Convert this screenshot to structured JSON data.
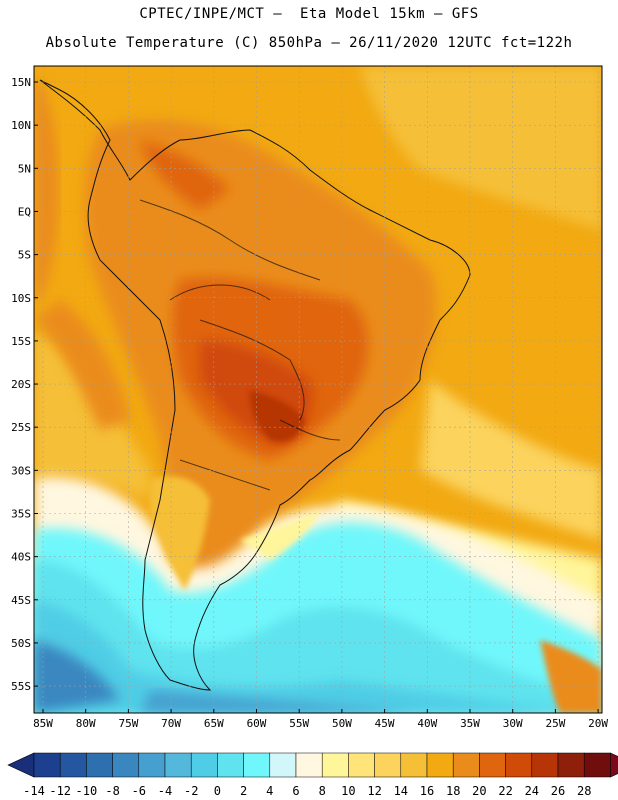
{
  "header": {
    "title_line1": "CPTEC/INPE/MCT –  Eta Model 15km – GFS",
    "title_line2": "Absolute Temperature (C) 850hPa – 26/11/2020 12UTC fct=122h"
  },
  "map": {
    "lat_labels": [
      "15N",
      "10N",
      "5N",
      "EQ",
      "5S",
      "10S",
      "15S",
      "20S",
      "25S",
      "30S",
      "35S",
      "40S",
      "45S",
      "50S",
      "55S"
    ],
    "lon_labels": [
      "85W",
      "80W",
      "75W",
      "70W",
      "65W",
      "60W",
      "55W",
      "50W",
      "45W",
      "40W",
      "35W",
      "30W",
      "25W",
      "20W"
    ]
  },
  "colorbar": {
    "labels": [
      "-14",
      "-12",
      "-10",
      "-8",
      "-6",
      "-4",
      "-2",
      "0",
      "2",
      "4",
      "6",
      "8",
      "10",
      "12",
      "14",
      "16",
      "18",
      "20",
      "22",
      "24",
      "26",
      "28"
    ],
    "colors": [
      "#1c3f8f",
      "#2556a0",
      "#2e6fb0",
      "#3a87c0",
      "#46a0cf",
      "#53b8dc",
      "#4fcde6",
      "#5fe3ee",
      "#6ff7fb",
      "#d2f7fb",
      "#fff7e0",
      "#fff59a",
      "#ffe47a",
      "#fbd35d",
      "#f5bf38",
      "#f2a912",
      "#ea8c1c",
      "#e0650f",
      "#d04a08",
      "#b63406",
      "#8e1f0a",
      "#700e0e"
    ],
    "min_color": "#1a2f7a",
    "max_color": "#7a0a1a"
  }
}
